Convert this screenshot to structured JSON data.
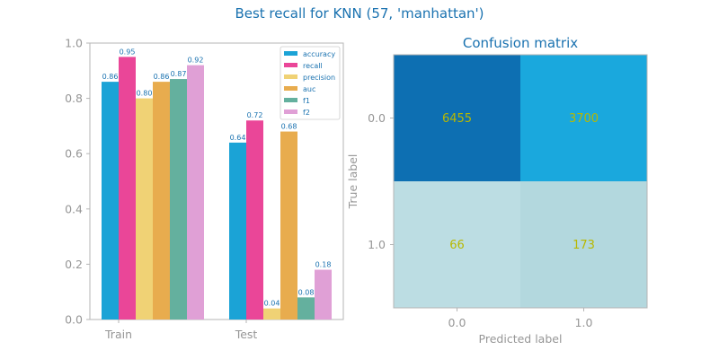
{
  "title": "Best recall for KNN (57, 'manhattan')",
  "chart_data": [
    {
      "type": "bar",
      "title": "",
      "categories": [
        "Train",
        "Test"
      ],
      "series": [
        {
          "name": "accuracy",
          "values": [
            0.86,
            0.64
          ],
          "color": "#1ba3d6"
        },
        {
          "name": "recall",
          "values": [
            0.95,
            0.72
          ],
          "color": "#ea4698"
        },
        {
          "name": "precision",
          "values": [
            0.8,
            0.04
          ],
          "color": "#f0d275"
        },
        {
          "name": "auc",
          "values": [
            0.86,
            0.68
          ],
          "color": "#e8ac4e"
        },
        {
          "name": "f1",
          "values": [
            0.87,
            0.08
          ],
          "color": "#64b09e"
        },
        {
          "name": "f2",
          "values": [
            0.92,
            0.18
          ],
          "color": "#e0a0d6"
        }
      ],
      "data_labels": [
        [
          "0.86",
          "0.95",
          "0.80",
          "0.86",
          "0.87",
          "0.92"
        ],
        [
          "0.64",
          "0.72",
          "0.04",
          "0.68",
          "0.08",
          "0.18"
        ]
      ],
      "ylim": [
        0,
        1.0
      ],
      "yticks": [
        "0.0",
        "0.2",
        "0.4",
        "0.6",
        "0.8",
        "1.0"
      ],
      "xlabel": "",
      "ylabel": "",
      "legend": "top-right",
      "grid": false
    },
    {
      "type": "heatmap",
      "title": "Confusion matrix",
      "xlabel": "Predicted label",
      "ylabel": "True label",
      "xticks": [
        "0.0",
        "1.0"
      ],
      "yticks": [
        "0.0",
        "1.0"
      ],
      "values": [
        [
          6455,
          3700
        ],
        [
          66,
          173
        ]
      ],
      "value_labels": [
        [
          "6455",
          "3700"
        ],
        [
          "66",
          "173"
        ]
      ],
      "cell_colors": [
        [
          "#0d6fb2",
          "#1aa8dd"
        ],
        [
          "#bcdde3",
          "#b3d8de"
        ]
      ]
    }
  ]
}
